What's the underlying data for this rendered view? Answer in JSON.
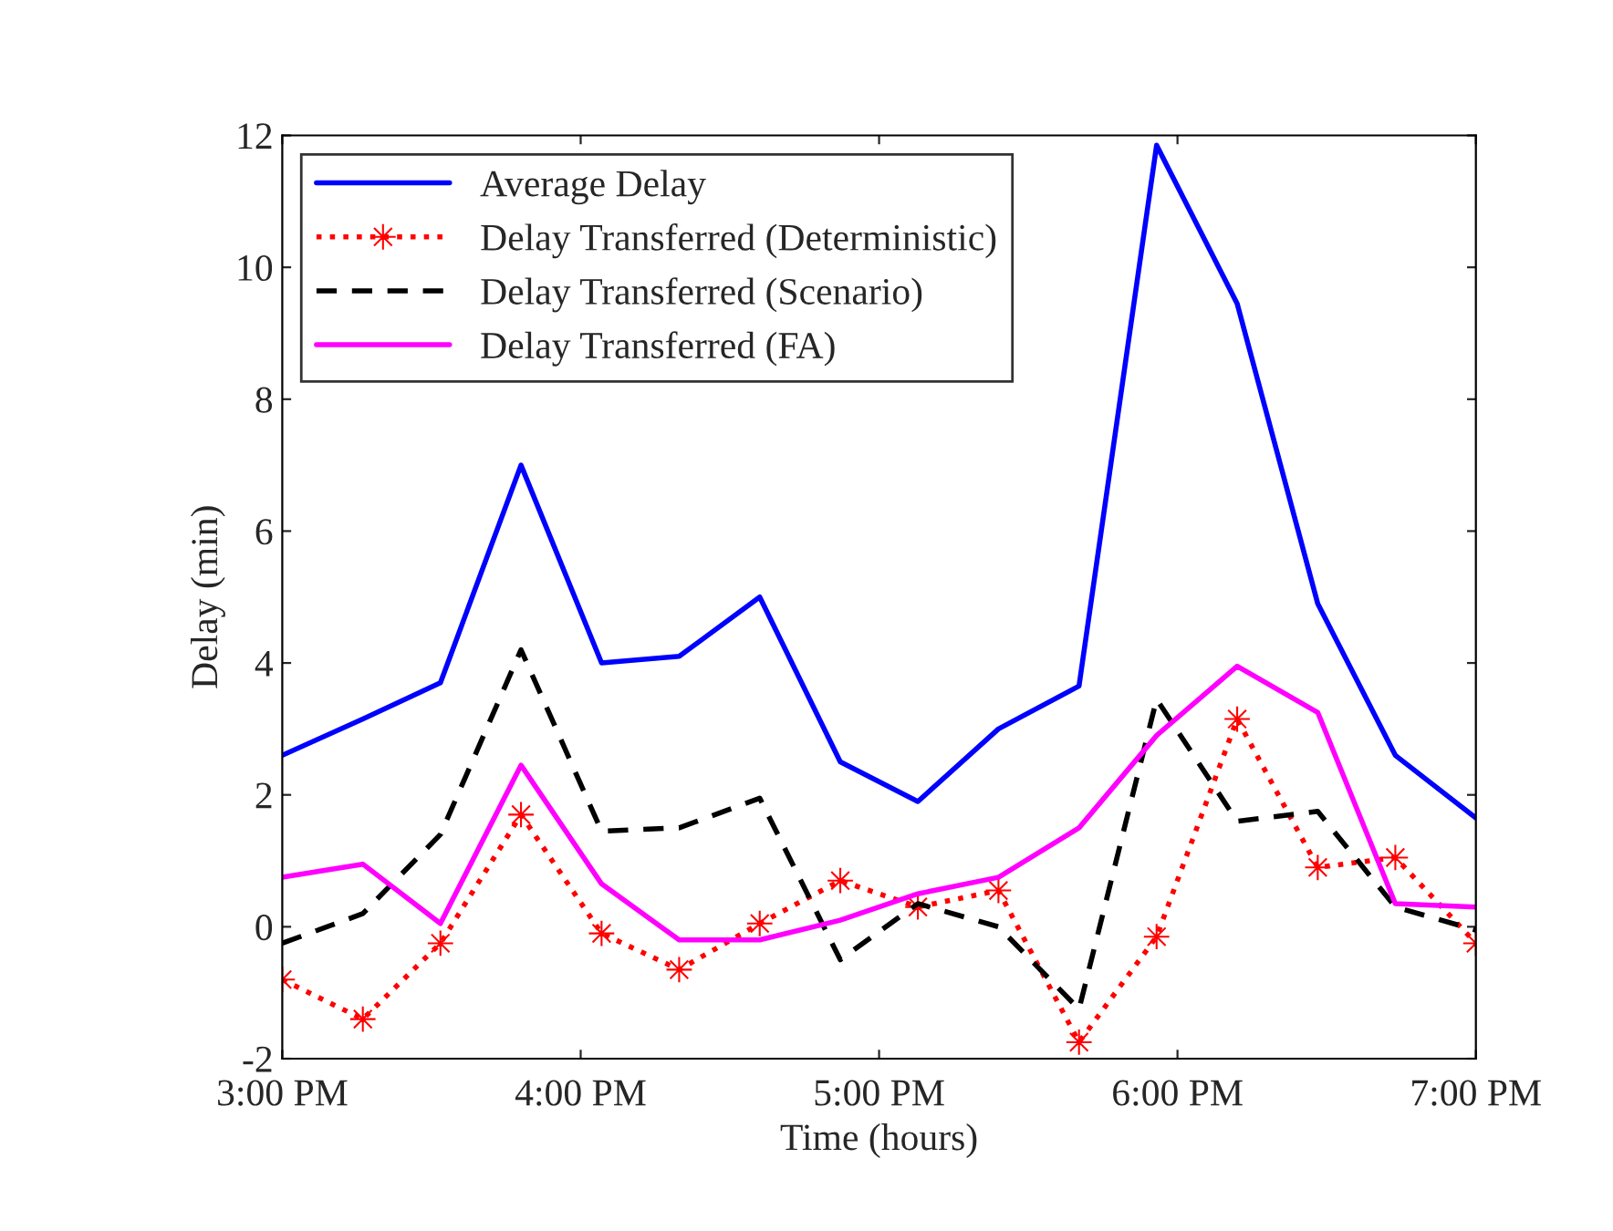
{
  "chart_data": {
    "type": "line",
    "xlabel": "Time (hours)",
    "ylabel": "Delay (min)",
    "x": [
      15,
      15.27,
      15.53,
      15.8,
      16.07,
      16.33,
      16.6,
      16.87,
      17.13,
      17.4,
      17.67,
      17.93,
      18.2,
      18.47,
      18.73,
      19
    ],
    "xlim": [
      15,
      19
    ],
    "xticks": [
      {
        "value": 15,
        "label": "3:00 PM"
      },
      {
        "value": 16,
        "label": "4:00 PM"
      },
      {
        "value": 17,
        "label": "5:00 PM"
      },
      {
        "value": 18,
        "label": "6:00 PM"
      },
      {
        "value": 19,
        "label": "7:00 PM"
      }
    ],
    "ylim": [
      -2,
      12
    ],
    "yticks": [
      -2,
      0,
      2,
      4,
      6,
      8,
      10,
      12
    ],
    "grid": false,
    "legend": "top left",
    "series": [
      {
        "name": "Average Delay",
        "color": "#0000ff",
        "line_style": "solid",
        "marker": "none",
        "values": [
          2.6,
          3.15,
          3.7,
          7.0,
          4.0,
          4.1,
          5.0,
          2.5,
          1.9,
          3.0,
          3.65,
          11.85,
          9.45,
          4.9,
          2.6,
          1.65
        ]
      },
      {
        "name": "Delay Transferred (Deterministic)",
        "color": "#ff0000",
        "line_style": "dotted",
        "marker": "star",
        "values": [
          -0.8,
          -1.4,
          -0.25,
          1.7,
          -0.1,
          -0.65,
          0.05,
          0.7,
          0.3,
          0.55,
          -1.75,
          -0.15,
          3.15,
          0.9,
          1.05,
          -0.25
        ]
      },
      {
        "name": "Delay Transferred (Scenario)",
        "color": "#000000",
        "line_style": "dashed",
        "marker": "none",
        "values": [
          -0.25,
          0.2,
          1.4,
          4.2,
          1.45,
          1.5,
          1.95,
          -0.5,
          0.35,
          0.0,
          -1.25,
          3.45,
          1.6,
          1.75,
          0.3,
          -0.05
        ]
      },
      {
        "name": "Delay Transferred (FA)",
        "color": "#ff00ff",
        "line_style": "solid",
        "marker": "none",
        "values": [
          0.75,
          0.95,
          0.05,
          2.45,
          0.65,
          -0.2,
          -0.2,
          0.1,
          0.5,
          0.75,
          1.5,
          2.9,
          3.95,
          3.25,
          0.35,
          0.3
        ]
      }
    ]
  }
}
